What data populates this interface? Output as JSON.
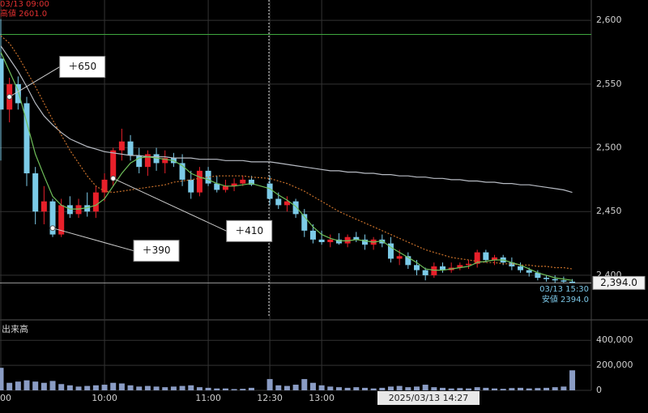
{
  "chart_data": {
    "type": "candlestick",
    "info": {
      "start": "03/13 09:00",
      "high": "高値 2601.0",
      "end": "03/13 15:30",
      "low": "安値 2394.0",
      "cursor": "2025/03/13 14:27"
    },
    "categories": [
      "00",
      null,
      null,
      null,
      null,
      null,
      null,
      null,
      null,
      null,
      null,
      null,
      "10:00",
      null,
      null,
      null,
      null,
      null,
      null,
      null,
      null,
      null,
      null,
      null,
      "11:00",
      null,
      null,
      null,
      null,
      null,
      "12:30",
      null,
      null,
      null,
      null,
      null,
      "13:00",
      null,
      null,
      null,
      null,
      null,
      null,
      null,
      null,
      null,
      null,
      null,
      null,
      null,
      null,
      null,
      null,
      null,
      null,
      null,
      null,
      null,
      null,
      null,
      null,
      null,
      null,
      null,
      null,
      null
    ],
    "up_color": "#e8202a",
    "down_color": "#7ccbe8",
    "open": [
      2570,
      2530,
      2550,
      2535,
      2480,
      2450,
      2458,
      2432,
      2455,
      2448,
      2455,
      2450,
      2465,
      2475,
      2498,
      2505,
      2494,
      2485,
      2495,
      2488,
      2492,
      2488,
      2475,
      2465,
      2482,
      2472,
      2467,
      2470,
      2472,
      2475,
      2472,
      2460,
      2455,
      2458,
      2448,
      2435,
      2428,
      2426,
      2428,
      2425,
      2430,
      2428,
      2424,
      2428,
      2425,
      2413,
      2415,
      2408,
      2404,
      2400,
      2407,
      2404,
      2406,
      2408,
      2409,
      2418,
      2412,
      2414,
      2410,
      2407,
      2404,
      2402,
      2398,
      2397,
      2396,
      2395
    ],
    "high": [
      2601,
      2555,
      2556,
      2540,
      2485,
      2470,
      2460,
      2460,
      2462,
      2460,
      2465,
      2470,
      2480,
      2500,
      2515,
      2510,
      2500,
      2498,
      2500,
      2498,
      2496,
      2495,
      2482,
      2485,
      2485,
      2478,
      2475,
      2476,
      2478,
      2478,
      2478,
      2465,
      2462,
      2460,
      2452,
      2440,
      2435,
      2432,
      2433,
      2432,
      2434,
      2432,
      2430,
      2432,
      2430,
      2420,
      2418,
      2412,
      2406,
      2410,
      2410,
      2410,
      2410,
      2412,
      2420,
      2420,
      2416,
      2416,
      2414,
      2410,
      2406,
      2404,
      2400,
      2400,
      2399,
      2397
    ],
    "low": [
      2490,
      2520,
      2530,
      2470,
      2440,
      2440,
      2430,
      2430,
      2445,
      2445,
      2446,
      2445,
      2458,
      2470,
      2490,
      2490,
      2480,
      2478,
      2482,
      2480,
      2485,
      2470,
      2460,
      2462,
      2470,
      2465,
      2465,
      2466,
      2470,
      2470,
      2455,
      2452,
      2450,
      2445,
      2430,
      2425,
      2424,
      2422,
      2424,
      2422,
      2426,
      2420,
      2420,
      2422,
      2410,
      2408,
      2405,
      2400,
      2396,
      2398,
      2402,
      2402,
      2404,
      2405,
      2406,
      2410,
      2408,
      2408,
      2404,
      2402,
      2399,
      2396,
      2395,
      2394,
      2394,
      2394
    ],
    "close": [
      2530,
      2550,
      2535,
      2480,
      2450,
      2458,
      2432,
      2455,
      2448,
      2455,
      2450,
      2465,
      2475,
      2498,
      2505,
      2494,
      2485,
      2495,
      2488,
      2492,
      2488,
      2475,
      2465,
      2482,
      2472,
      2467,
      2470,
      2472,
      2475,
      2471,
      2460,
      2455,
      2458,
      2448,
      2435,
      2428,
      2426,
      2428,
      2425,
      2430,
      2428,
      2424,
      2428,
      2425,
      2413,
      2415,
      2408,
      2404,
      2400,
      2407,
      2404,
      2406,
      2408,
      2409,
      2418,
      2412,
      2414,
      2410,
      2407,
      2404,
      2402,
      2398,
      2397,
      2396,
      2395,
      2394
    ],
    "lines": [
      {
        "color": "#b8bcc4",
        "values": [
          2580,
          2570,
          2560,
          2548,
          2535,
          2525,
          2518,
          2512,
          2507,
          2504,
          2501,
          2499,
          2497,
          2496,
          2495,
          2494,
          2494,
          2493,
          2493,
          2493,
          2492,
          2492,
          2492,
          2491,
          2491,
          2491,
          2490,
          2490,
          2490,
          2489,
          2489,
          2488,
          2487,
          2486,
          2485,
          2484,
          2483,
          2482,
          2482,
          2481,
          2481,
          2480,
          2480,
          2479,
          2479,
          2478,
          2478,
          2477,
          2477,
          2476,
          2476,
          2475,
          2475,
          2474,
          2474,
          2473,
          2473,
          2472,
          2472,
          2471,
          2471,
          2470,
          2469,
          2468,
          2467,
          2465
        ]
      },
      {
        "color": "#c8702a",
        "dashed": true,
        "values": [
          2588,
          2582,
          2572,
          2560,
          2548,
          2535,
          2522,
          2510,
          2498,
          2488,
          2478,
          2470,
          2466,
          2465,
          2466,
          2467,
          2468,
          2469,
          2470,
          2471,
          2473,
          2474,
          2475,
          2476,
          2477,
          2478,
          2478,
          2478,
          2478,
          2477,
          2476,
          2474,
          2472,
          2469,
          2466,
          2462,
          2458,
          2454,
          2450,
          2447,
          2444,
          2441,
          2438,
          2435,
          2432,
          2429,
          2426,
          2423,
          2420,
          2418,
          2416,
          2414,
          2413,
          2412,
          2411,
          2410,
          2410,
          2409,
          2409,
          2408,
          2408,
          2407,
          2407,
          2406,
          2406,
          2405
        ]
      },
      {
        "color": "#6fbf5a",
        "values": [
          2575,
          2560,
          2545,
          2520,
          2495,
          2478,
          2462,
          2455,
          2452,
          2452,
          2453,
          2455,
          2460,
          2470,
          2480,
          2488,
          2492,
          2493,
          2492,
          2491,
          2490,
          2486,
          2480,
          2477,
          2475,
          2472,
          2470,
          2470,
          2471,
          2472,
          2468,
          2463,
          2459,
          2454,
          2446,
          2438,
          2432,
          2429,
          2427,
          2427,
          2428,
          2427,
          2426,
          2427,
          2422,
          2418,
          2414,
          2410,
          2405,
          2404,
          2404,
          2405,
          2406,
          2407,
          2410,
          2411,
          2412,
          2412,
          2410,
          2408,
          2405,
          2402,
          2400,
          2398,
          2397,
          2396
        ]
      }
    ],
    "hlines": [
      {
        "value": 2589,
        "color": "#3fa83f"
      },
      {
        "value": 2394,
        "color": "#9a9a9a"
      }
    ],
    "price_label": {
      "value": 2394,
      "label": "2,394.0"
    },
    "annotations": [
      {
        "text": "＋650",
        "x": 1,
        "y": 2540
      },
      {
        "text": "＋390",
        "x": 6,
        "y": 2437
      },
      {
        "text": "＋410",
        "x": 13,
        "y": 2476
      }
    ],
    "ylim": [
      2365,
      2616
    ],
    "yticks": [
      {
        "value": 2400,
        "label": "2,400"
      },
      {
        "value": 2450,
        "label": "2,450"
      },
      {
        "value": 2500,
        "label": "2,500"
      },
      {
        "value": 2550,
        "label": "2,550"
      },
      {
        "value": 2600,
        "label": "2,600"
      }
    ],
    "volume": {
      "title": "出来高",
      "color": "#8a9cc4",
      "values": [
        180000,
        60000,
        70000,
        80000,
        70000,
        60000,
        75000,
        50000,
        40000,
        30000,
        35000,
        40000,
        45000,
        60000,
        55000,
        40000,
        30000,
        35000,
        30000,
        25000,
        30000,
        35000,
        40000,
        25000,
        20000,
        15000,
        15000,
        10000,
        12000,
        20000,
        90000,
        40000,
        35000,
        45000,
        90000,
        60000,
        40000,
        30000,
        25000,
        20000,
        25000,
        20000,
        15000,
        20000,
        30000,
        35000,
        25000,
        30000,
        45000,
        25000,
        20000,
        15000,
        18000,
        15000,
        25000,
        20000,
        15000,
        12000,
        18000,
        20000,
        15000,
        18000,
        20000,
        25000,
        30000,
        160000
      ],
      "ylim": [
        0,
        544000
      ],
      "yticks": [
        0,
        {
          "value": 200000,
          "label": "200,000"
        },
        {
          "value": 400000,
          "label": "400,000"
        }
      ]
    }
  }
}
